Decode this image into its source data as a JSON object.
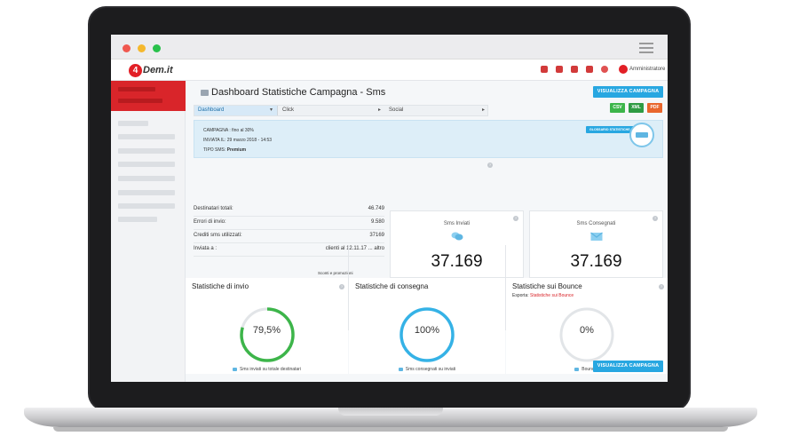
{
  "header": {
    "logo_text": "Dem.it",
    "logo_mark": "4",
    "admin_label": "Amministratore",
    "icons": [
      "users-icon",
      "bank-icon",
      "cart-icon",
      "coins-icon",
      "flag-icon",
      "account-icon"
    ]
  },
  "page": {
    "title": "Dashboard Statistiche Campagna - Sms",
    "view_campaign_label": "VISUALIZZA CAMPAGNA",
    "export_buttons": [
      {
        "label": "CSV",
        "color": "#3cb54a"
      },
      {
        "label": "XML",
        "color": "#2e9b43"
      },
      {
        "label": "PDF",
        "color": "#e9662c"
      }
    ]
  },
  "tabs": [
    {
      "label": "Dashboard",
      "active": true
    },
    {
      "label": "Click",
      "active": false
    },
    {
      "label": "Social",
      "active": false
    }
  ],
  "info": {
    "campaign": "CAMPAGNA : fino al 30%",
    "sent_on": "INVIATA IL: 29 marzo 2018 - 14:53",
    "sms_type_label": "TIPO SMS:",
    "sms_type_value": "Premium",
    "glossary_label": "GLOSSARIO STATISTICHE"
  },
  "stats": [
    {
      "label": "Destinatari totali:",
      "value": "46.749"
    },
    {
      "label": "Errori di invio:",
      "value": "9.580"
    },
    {
      "label": "Crediti sms utilizzati:",
      "value": "37169"
    },
    {
      "label": "Inviata a :",
      "value": "clienti al 12.11.17 ... altro"
    }
  ],
  "promo_label": "Sconti e promozioni",
  "kpis": [
    {
      "title": "Sms Inviati",
      "value": "37.169",
      "icon": "chat-bubbles-icon"
    },
    {
      "title": "Sms Consegnati",
      "value": "37.169",
      "icon": "envelope-icon"
    }
  ],
  "charts": [
    {
      "title": "Statistiche di invio",
      "value_label": "79,5%",
      "fraction": 0.795,
      "color": "#3db54a",
      "caption": "Sms inviati su totale destinatari"
    },
    {
      "title": "Statistiche di consegna",
      "value_label": "100%",
      "fraction": 1.0,
      "color": "#35b2e6",
      "caption": "Sms consegnati su inviati"
    },
    {
      "title": "Statistiche sui Bounce",
      "export_label": "Esporta:",
      "export_link": "Statistiche sui Bounce",
      "value_label": "0%",
      "fraction": 0.0,
      "color": "#35b2e6",
      "caption": "Bounces"
    }
  ]
}
